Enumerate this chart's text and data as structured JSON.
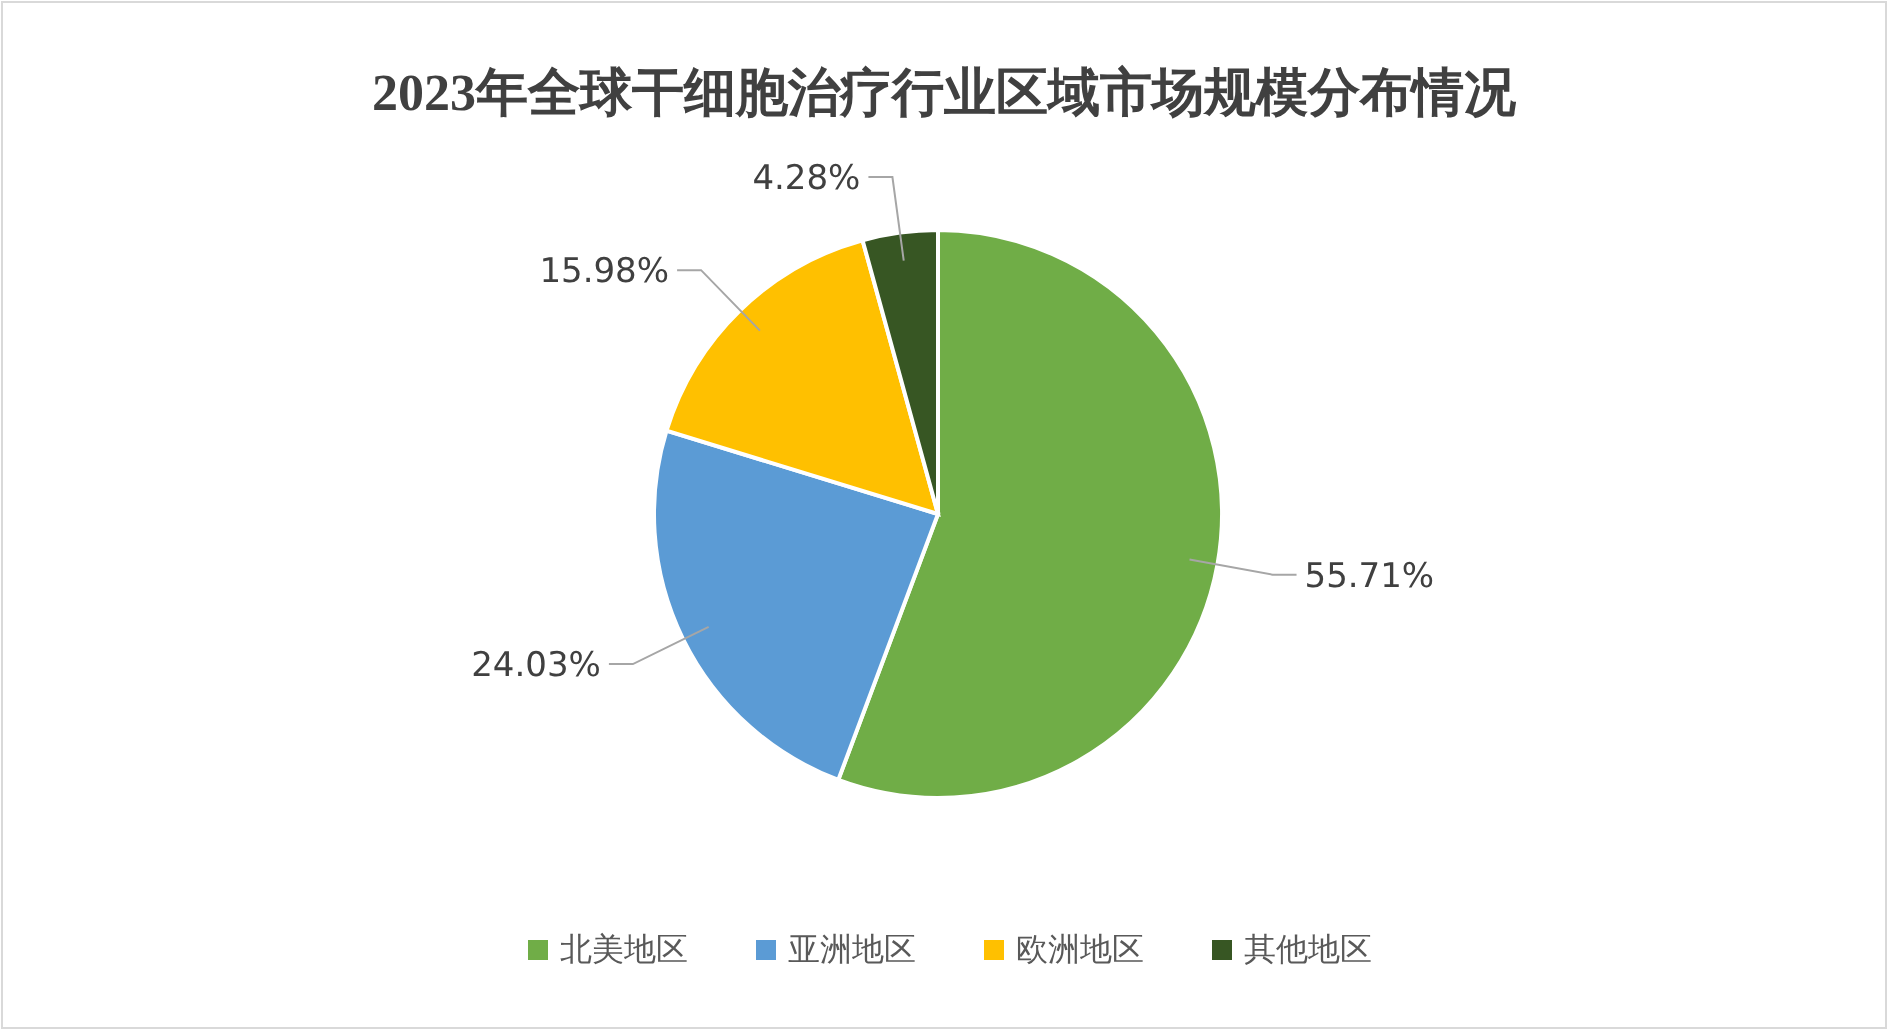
{
  "chart_data": {
    "type": "pie",
    "title": "2023年全球干细胞治疗行业区域市场规模分布情况",
    "categories": [
      "北美地区",
      "亚洲地区",
      "欧洲地区",
      "其他地区"
    ],
    "values": [
      55.71,
      24.03,
      15.98,
      4.28
    ],
    "value_labels": [
      "55.71%",
      "24.03%",
      "15.98%",
      "4.28%"
    ],
    "colors": [
      "#70ad47",
      "#5b9bd5",
      "#ffc000",
      "#375623"
    ],
    "legend": "bottom"
  }
}
